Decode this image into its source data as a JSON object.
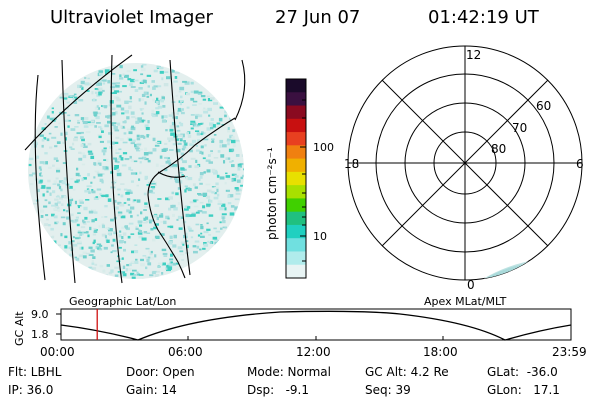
{
  "header": {
    "instrument": "Ultraviolet Imager",
    "date": "27 Jun 07",
    "time": "01:42:19 UT"
  },
  "colorbar": {
    "unit_label": "photon cm⁻²s⁻¹",
    "ticks": [
      "100",
      "10"
    ],
    "colors": [
      "#1a0a2a",
      "#3a1040",
      "#8a0a20",
      "#c81010",
      "#e84020",
      "#f08010",
      "#f0b000",
      "#e8e000",
      "#a8e000",
      "#40d000",
      "#20c080",
      "#20d0c0",
      "#70e0e0",
      "#b0ecec",
      "#e8f4f4"
    ]
  },
  "polar_plot": {
    "mlt_labels": [
      "12",
      "18",
      "6",
      "0"
    ],
    "lat_labels": [
      "60",
      "70",
      "80"
    ]
  },
  "timeline": {
    "ylabel": "GC Alt",
    "yticks": [
      "9.0",
      "1.8"
    ],
    "left_title": "Geographic Lat/Lon",
    "right_title": "Apex MLat/MLT",
    "xticks": [
      "00:00",
      "06:00",
      "12:00",
      "18:00",
      "23:59"
    ],
    "current_time_fraction": 0.071,
    "marker_color": "#d01010"
  },
  "status": {
    "flt": "Flt: LBHL",
    "ip": "IP: 36.0",
    "door": "Door: Open",
    "gain": "Gain: 14",
    "mode": "Mode: Normal",
    "dsp": "Dsp:   -9.1",
    "gcalt": "GC Alt: 4.2 Re",
    "seq": "Seq: 39",
    "glat": "GLat:  -36.0",
    "glon": "GLon:   17.1"
  }
}
